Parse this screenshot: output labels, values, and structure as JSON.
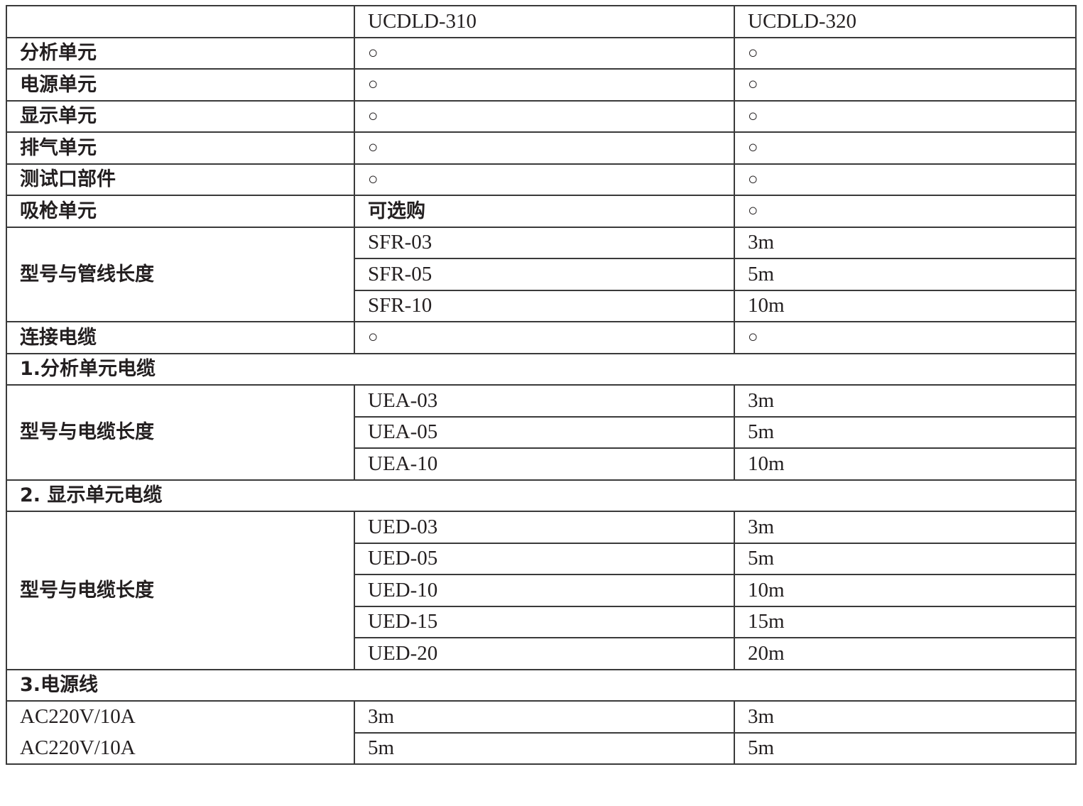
{
  "header": [
    "",
    "UCDLD-310",
    "UCDLD-320"
  ],
  "rows": [
    {
      "type": "row",
      "cells": [
        "分析单元",
        "○",
        "○"
      ]
    },
    {
      "type": "row",
      "cells": [
        "电源单元",
        "○",
        "○"
      ]
    },
    {
      "type": "row",
      "cells": [
        "显示单元",
        "○",
        "○"
      ]
    },
    {
      "type": "row",
      "cells": [
        "排气单元",
        "○",
        "○"
      ]
    },
    {
      "type": "row",
      "cells": [
        "测试口部件",
        "○",
        "○"
      ]
    },
    {
      "type": "row",
      "cells": [
        "吸枪单元",
        "可选购",
        "○"
      ]
    },
    {
      "type": "group",
      "label": "型号与管线长度",
      "items": [
        [
          "SFR-03",
          "3m"
        ],
        [
          "SFR-05",
          "5m"
        ],
        [
          "SFR-10",
          "10m"
        ]
      ]
    },
    {
      "type": "row",
      "cells": [
        "连接电缆",
        "○",
        "○"
      ]
    },
    {
      "type": "section",
      "label": "1.分析单元电缆"
    },
    {
      "type": "group",
      "label": "型号与电缆长度",
      "items": [
        [
          "UEA-03",
          "3m"
        ],
        [
          "UEA-05",
          "5m"
        ],
        [
          "UEA-10",
          "10m"
        ]
      ]
    },
    {
      "type": "section",
      "label": "2.  显示单元电缆"
    },
    {
      "type": "group",
      "label": "型号与电缆长度",
      "items": [
        [
          "UED-03",
          "3m"
        ],
        [
          "UED-05",
          "5m"
        ],
        [
          "UED-10",
          "10m"
        ],
        [
          "UED-15",
          "15m"
        ],
        [
          "UED-20",
          "20m"
        ]
      ]
    },
    {
      "type": "section",
      "label": "3.电源线"
    },
    {
      "type": "open",
      "cells": [
        "AC220V/10A",
        "3m",
        "3m"
      ]
    },
    {
      "type": "open",
      "cells": [
        "AC220V/10A",
        "5m",
        "5m"
      ]
    }
  ]
}
